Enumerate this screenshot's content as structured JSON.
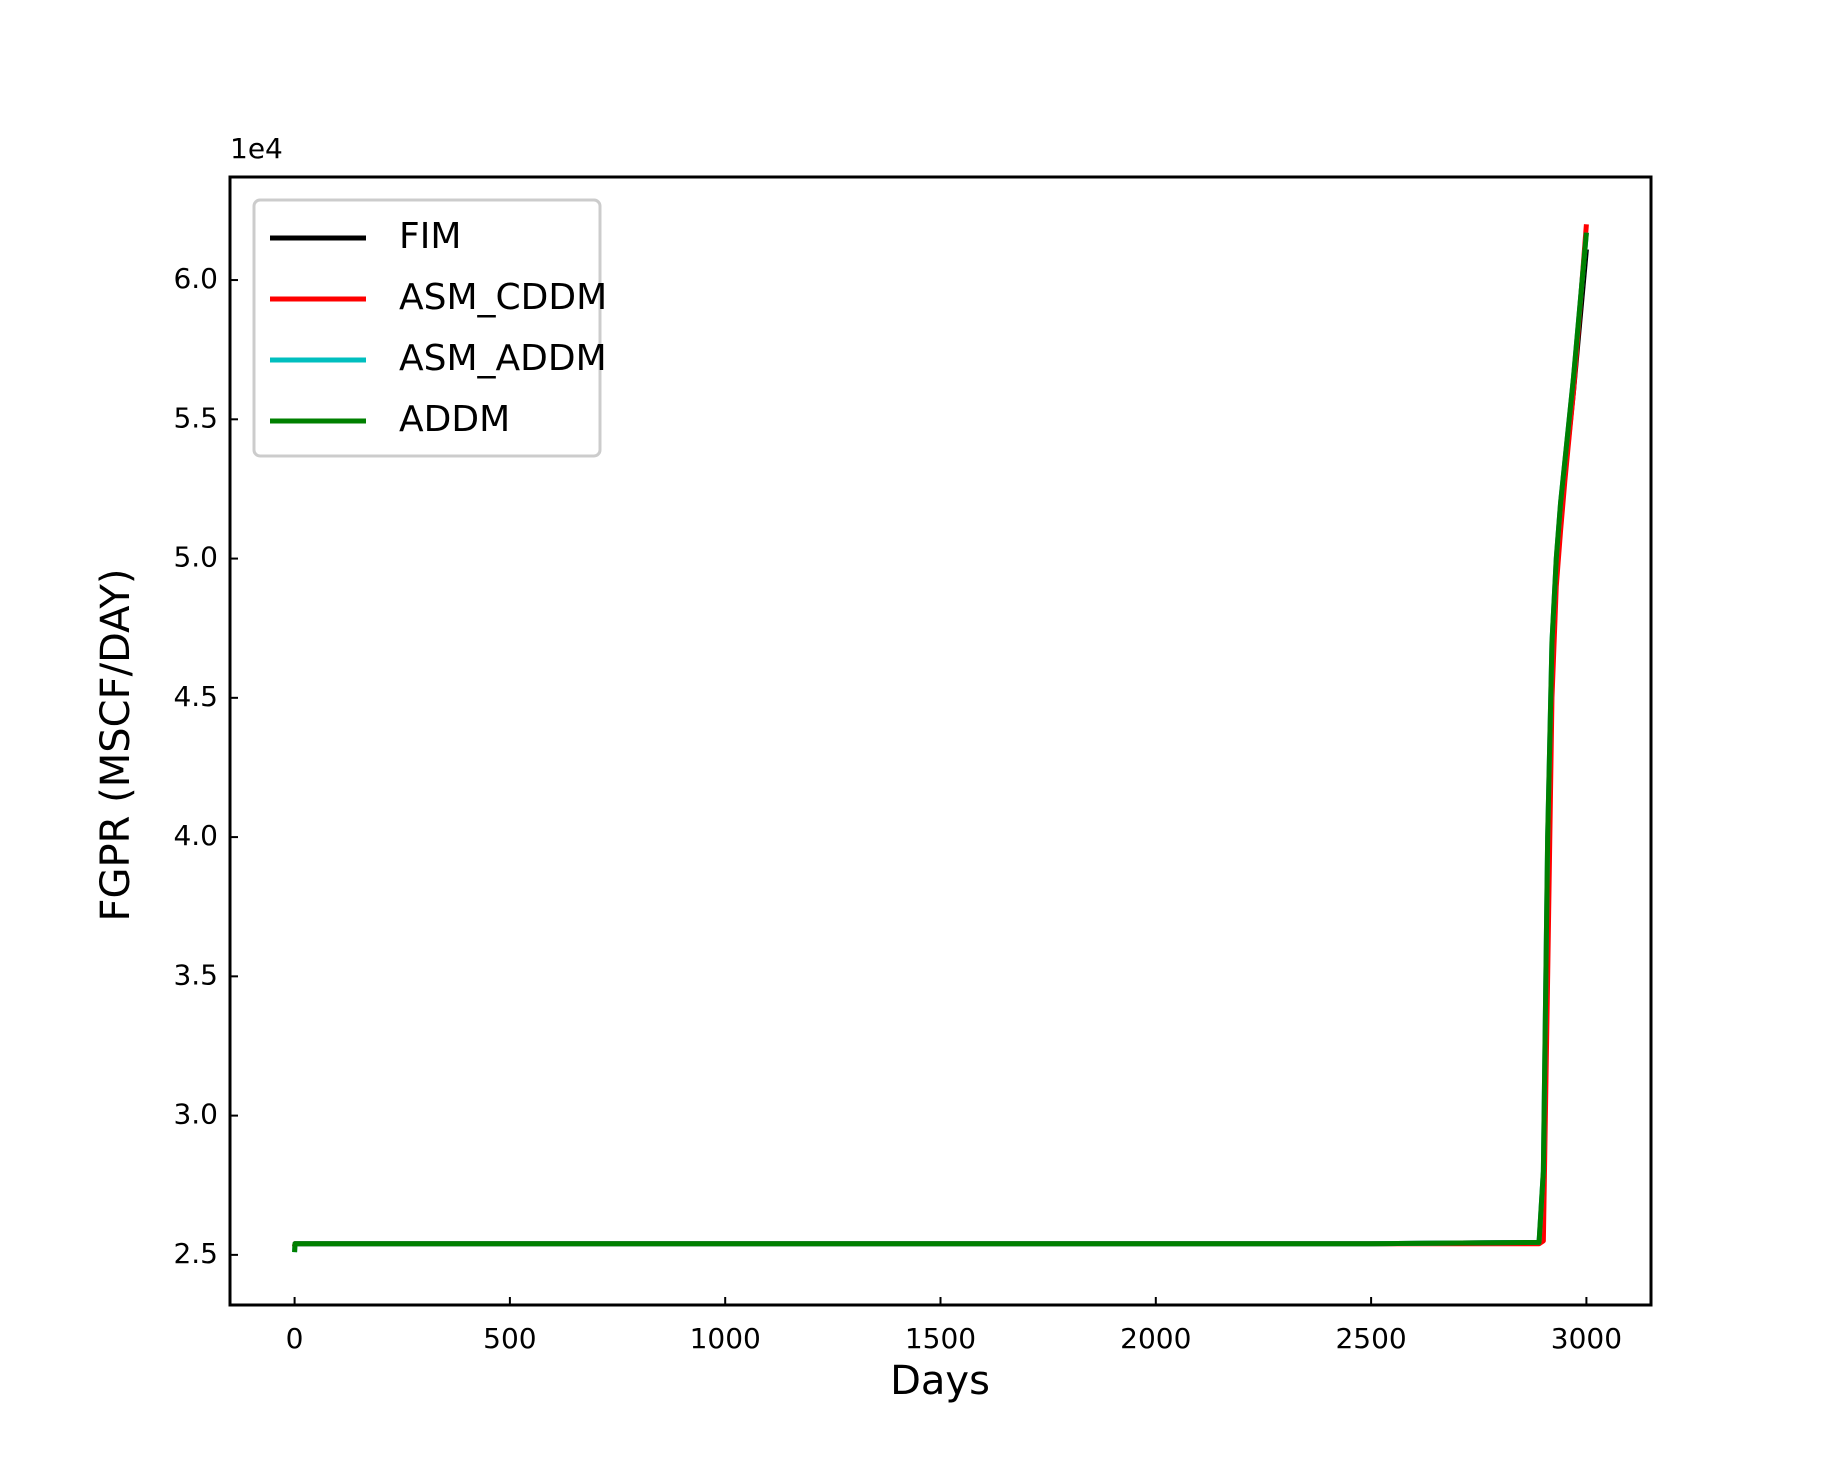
{
  "chart_data": {
    "type": "line",
    "x_label": "Days",
    "y_label": "FGPR  (MSCF/DAY)",
    "y_offset_label": "1e4",
    "x": [
      0,
      1,
      100,
      500,
      1000,
      1500,
      2000,
      2500,
      2890,
      2900,
      2910,
      2920,
      2930,
      2940,
      2950,
      2970,
      3000
    ],
    "series": [
      {
        "name": "FIM",
        "color": "#000000",
        "values": [
          2.53,
          2.54,
          2.54,
          2.54,
          2.54,
          2.54,
          2.54,
          2.54,
          2.545,
          2.7,
          3.8,
          4.6,
          4.95,
          5.15,
          5.3,
          5.6,
          6.11
        ]
      },
      {
        "name": "ASM_CDDM",
        "color": "#ff0000",
        "values": [
          2.53,
          2.54,
          2.54,
          2.54,
          2.54,
          2.54,
          2.54,
          2.54,
          2.54,
          2.55,
          3.5,
          4.5,
          4.9,
          5.1,
          5.28,
          5.6,
          6.2
        ]
      },
      {
        "name": "ASM_ADDM",
        "color": "#00bfbf",
        "values": [
          2.51,
          2.54,
          2.54,
          2.54,
          2.54,
          2.54,
          2.54,
          2.54,
          2.545,
          2.8,
          4.0,
          4.7,
          5.0,
          5.2,
          5.35,
          5.65,
          6.17
        ]
      },
      {
        "name": "ADDM",
        "color": "#008000",
        "values": [
          2.51,
          2.54,
          2.54,
          2.54,
          2.54,
          2.54,
          2.54,
          2.54,
          2.545,
          2.8,
          4.0,
          4.7,
          5.0,
          5.2,
          5.35,
          5.65,
          6.17
        ]
      }
    ],
    "xlim": [
      -150,
      3150
    ],
    "ylim": [
      2.32,
      6.37
    ],
    "xticks": [
      0,
      500,
      1000,
      1500,
      2000,
      2500,
      3000
    ],
    "yticks": [
      2.5,
      {
        "value": 3,
        "label": "3.0"
      },
      3.5,
      {
        "value": 4,
        "label": "4.0"
      },
      4.5,
      {
        "value": 5,
        "label": "5.0"
      },
      5.5,
      {
        "value": 6,
        "label": "6.0"
      }
    ],
    "legend": "upper left",
    "grid": false
  }
}
